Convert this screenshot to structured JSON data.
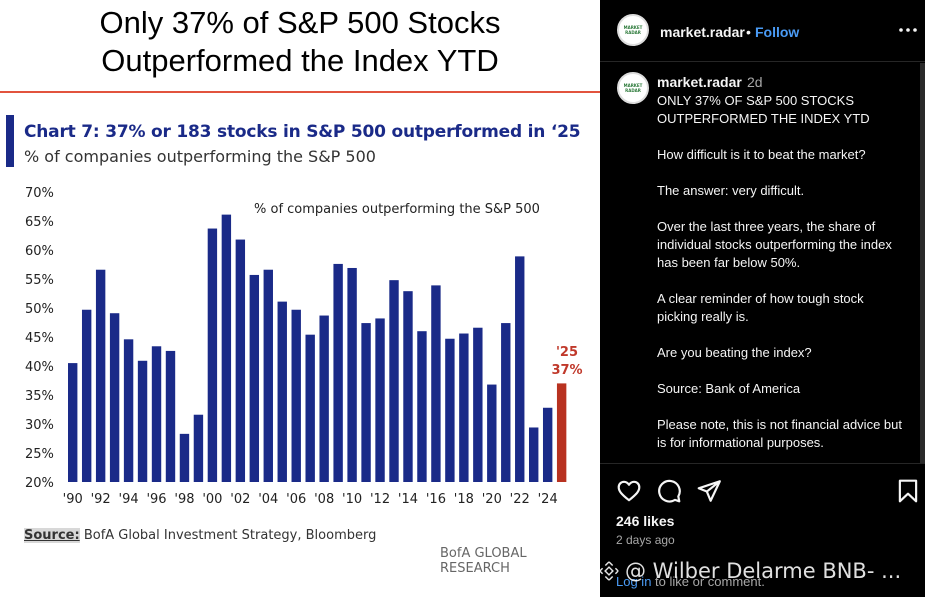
{
  "post": {
    "headline": "Only 37% of S&P 500 Stocks Outperformed the Index YTD",
    "chart_title": "Chart 7: 37% or 183 stocks in S&P 500 outperformed in ‘25",
    "chart_subtitle": "% of companies outperforming the S&P 500",
    "source_label": "Source:",
    "source_text": " BofA Global Investment Strategy, Bloomberg",
    "brand": "BofA GLOBAL RESEARCH"
  },
  "chart_data": {
    "type": "bar",
    "title": "Chart 7: 37% or 183 stocks in S&P 500 outperformed in ‘25",
    "subtitle": "% of companies outperforming the S&P 500",
    "legend": "% of companies outperforming the S&P 500",
    "y_ticks": [
      "70%",
      "65%",
      "60%",
      "55%",
      "50%",
      "45%",
      "40%",
      "35%",
      "30%",
      "25%",
      "20%"
    ],
    "ylim": [
      20,
      70
    ],
    "x_tick_labels": [
      "'90",
      "'92",
      "'94",
      "'96",
      "'98",
      "'00",
      "'02",
      "'04",
      "'06",
      "'08",
      "'10",
      "'12",
      "'14",
      "'16",
      "'18",
      "'20",
      "'22",
      "'24"
    ],
    "categories": [
      1990,
      1991,
      1992,
      1993,
      1994,
      1995,
      1996,
      1997,
      1998,
      1999,
      2000,
      2001,
      2002,
      2003,
      2004,
      2005,
      2006,
      2007,
      2008,
      2009,
      2010,
      2011,
      2012,
      2013,
      2014,
      2015,
      2016,
      2017,
      2018,
      2019,
      2020,
      2021,
      2022,
      2023,
      2024,
      2025
    ],
    "values": [
      40.5,
      49.7,
      56.6,
      49.1,
      44.6,
      40.9,
      43.4,
      42.6,
      28.3,
      31.6,
      63.7,
      66.1,
      61.8,
      55.7,
      56.6,
      51.1,
      49.7,
      45.4,
      48.7,
      57.6,
      56.9,
      47.4,
      48.2,
      54.8,
      52.9,
      46.0,
      53.9,
      44.7,
      45.6,
      46.6,
      36.8,
      47.4,
      58.9,
      29.4,
      32.8,
      37.0
    ],
    "highlight": {
      "year": 2025,
      "label_year": "'25",
      "label_value": "37%"
    },
    "colors": {
      "bar": "#1a2a88",
      "highlight": "#b83220",
      "annotation": "#c0392b"
    },
    "grid": false
  },
  "account": {
    "username": "market.radar",
    "follow_label": "Follow",
    "separator": "•",
    "avatar_text": "MARKET RADAR"
  },
  "caption": {
    "username": "market.radar",
    "time": "2d",
    "paragraphs": [
      "ONLY 37% OF S&P 500 STOCKS OUTPERFORMED THE INDEX YTD",
      "How difficult is it to beat the market?",
      "The answer: very difficult.",
      "Over the last three years, the share of individual stocks outperforming the index has been far below 50%.",
      "A clear reminder of how tough stock picking really is.",
      "Are you beating the index?",
      "Source: Bank of America",
      "Please note, this is not financial advice but is for informational purposes."
    ]
  },
  "engagement": {
    "likes": "246 likes",
    "posted": "2 days ago",
    "login_link": "Log in",
    "comment_prompt_rest": " to like or comment."
  },
  "icons": [
    "more-icon",
    "heart-icon",
    "comment-icon",
    "share-icon",
    "bookmark-icon"
  ],
  "watermark": {
    "text": "@ Wilber Delarme BNB- ..."
  },
  "colors": {
    "panel_bg": "#000000",
    "link_blue": "#4a9bf5",
    "headline_rule": "#e2533e"
  }
}
